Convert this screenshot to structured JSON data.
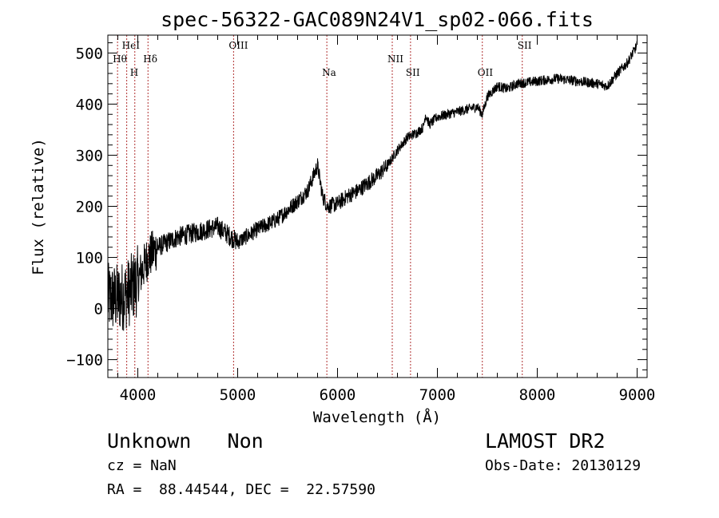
{
  "chart_data": {
    "type": "line",
    "title": "spec-56322-GAC089N24V1_sp02-066.fits",
    "xlabel": "Wavelength (Å)",
    "ylabel": "Flux (relative)",
    "xlim": [
      3700,
      9100
    ],
    "ylim": [
      -135,
      535
    ],
    "xticks": [
      4000,
      5000,
      6000,
      7000,
      8000,
      9000
    ],
    "yticks": [
      -100,
      0,
      100,
      200,
      300,
      400,
      500
    ],
    "xtick_labels": [
      "4000",
      "5000",
      "6000",
      "7000",
      "8000",
      "9000"
    ],
    "ytick_labels": [
      "−100",
      "0",
      "100",
      "200",
      "300",
      "400",
      "500"
    ],
    "grid": false,
    "line_color": "#000000",
    "marker_line_color": "#b03030",
    "continuum": {
      "x": [
        3700,
        3800,
        3900,
        4000,
        4100,
        4200,
        4400,
        4600,
        4800,
        5000,
        5200,
        5400,
        5600,
        5700,
        5800,
        5850,
        5900,
        6000,
        6100,
        6200,
        6300,
        6400,
        6500,
        6600,
        6700,
        6800,
        6860,
        6880,
        6920,
        7000,
        7200,
        7300,
        7400,
        7450,
        7500,
        7600,
        7700,
        7800,
        8000,
        8200,
        8400,
        8600,
        8700,
        8800,
        8900,
        9000
      ],
      "y": [
        20,
        20,
        30,
        55,
        100,
        120,
        140,
        150,
        160,
        130,
        155,
        175,
        210,
        230,
        280,
        220,
        200,
        205,
        220,
        230,
        245,
        260,
        280,
        310,
        335,
        345,
        355,
        380,
        360,
        375,
        385,
        390,
        395,
        380,
        415,
        435,
        430,
        440,
        445,
        450,
        445,
        440,
        435,
        460,
        480,
        515
      ]
    },
    "lines": [
      {
        "label": "Hθ",
        "x": 3797,
        "row": 2
      },
      {
        "label": "HeI",
        "x": 3889,
        "row": 1
      },
      {
        "label": "H",
        "x": 3970,
        "row": 3
      },
      {
        "label": "Hδ",
        "x": 4102,
        "row": 2
      },
      {
        "label": "OIII",
        "x": 4959,
        "row": 1
      },
      {
        "label": "Na",
        "x": 5893,
        "row": 3
      },
      {
        "label": "NII",
        "x": 6548,
        "row": 2
      },
      {
        "label": "SII",
        "x": 6731,
        "row": 3
      },
      {
        "label": "OII",
        "x": 7450,
        "row": 3
      },
      {
        "label": "SII",
        "x": 7850,
        "row": 1
      }
    ]
  },
  "footer": {
    "object_class": "Unknown   Non",
    "survey": "LAMOST DR2",
    "cz": "cz = NaN",
    "obs_date": "Obs-Date: 20130129",
    "radec": "RA =  88.44544, DEC =  22.57590"
  }
}
